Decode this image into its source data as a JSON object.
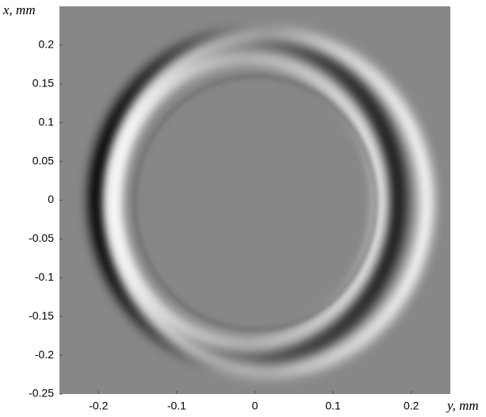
{
  "chart_data": {
    "type": "image",
    "x_label": "y, mm",
    "y_label": "x, mm",
    "xlim": [
      -0.25,
      0.25
    ],
    "ylim": [
      -0.25,
      0.25
    ],
    "xticks": [
      -0.2,
      -0.1,
      0,
      0.1,
      0.2
    ],
    "yticks": [
      -0.25,
      -0.2,
      -0.15,
      -0.1,
      -0.05,
      0,
      0.05,
      0.1,
      0.15,
      0.2
    ],
    "background": "#878787"
  }
}
